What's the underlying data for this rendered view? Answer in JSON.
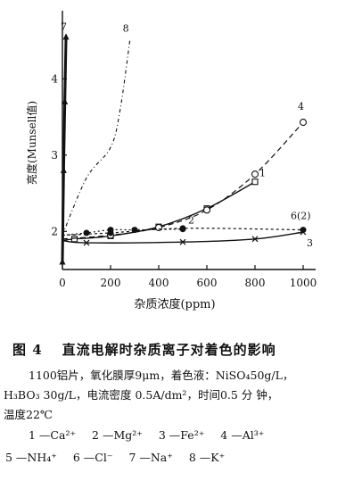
{
  "chart_data": {
    "type": "line",
    "title": "",
    "xlabel": "杂质浓度(ppm)",
    "ylabel": "亮度(Munsell值)",
    "xlim": [
      0,
      1000
    ],
    "ylim": [
      1.5,
      4.8
    ],
    "x_ticks": [
      "0",
      "200",
      "400",
      "600",
      "800",
      "1000"
    ],
    "y_ticks": [
      "2",
      "3",
      "4"
    ],
    "grid": false,
    "series": [
      {
        "name": "1",
        "x": [
          0,
          50,
          200,
          400,
          600,
          800
        ],
        "y": [
          1.88,
          1.9,
          1.94,
          2.06,
          2.3,
          2.65
        ]
      },
      {
        "name": "2",
        "x": [
          0,
          100,
          200,
          300,
          500
        ],
        "y": [
          1.95,
          1.98,
          2.02,
          2.02,
          2.03
        ]
      },
      {
        "name": "3",
        "x": [
          0,
          100,
          500,
          800,
          1000
        ],
        "y": [
          1.88,
          1.85,
          1.86,
          1.9,
          1.99
        ]
      },
      {
        "name": "4",
        "x": [
          0,
          200,
          400,
          600,
          800,
          1000
        ],
        "y": [
          1.9,
          1.95,
          2.05,
          2.28,
          2.75,
          3.43
        ]
      },
      {
        "name": "6(2)",
        "x": [
          0,
          200,
          500,
          1000
        ],
        "y": [
          1.95,
          1.98,
          2.04,
          2.02
        ]
      },
      {
        "name": "7",
        "x": [
          0,
          5,
          10,
          15
        ],
        "y": [
          1.6,
          2.8,
          3.7,
          4.55
        ]
      },
      {
        "name": "8",
        "x": [
          0,
          100,
          200,
          240,
          280
        ],
        "y": [
          1.95,
          2.7,
          3.1,
          3.6,
          4.5
        ]
      }
    ]
  },
  "caption": {
    "figure_number": "图 4",
    "title": "直流电解时杂质离子对着色的影响",
    "line1": "1100铝片，氧化膜厚9μm，着色液：NiSO₄50g/L，",
    "line2": "H₃BO₃ 30g/L，电流密度 0.5A/dm²，时间0.5 分 钟，",
    "line3": "温度22℃"
  },
  "legend": [
    "1 —Ca²⁺",
    "2 —Mg²⁺",
    "3 —Fe²⁺",
    "4 —Al³⁺",
    "5 —NH₄⁺",
    "6 —Cl⁻",
    "7 —Na⁺",
    "8 —K⁺"
  ]
}
